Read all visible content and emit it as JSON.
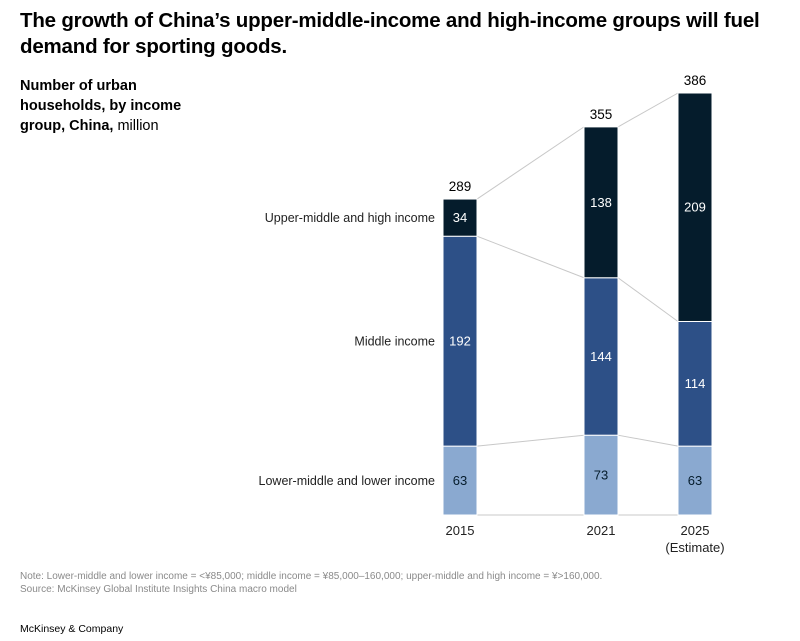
{
  "title": "The growth of China’s upper-middle-income and high-income groups will fuel demand for sporting goods.",
  "subtitle": {
    "bold": "Number of urban households, by income group, China,",
    "unit": "million"
  },
  "note": "Note: Lower-middle and lower income = <¥85,000; middle income = ¥85,000–160,000; upper-middle and high income = ¥>160,000.",
  "source": "Source: McKinsey Global Institute Insights China macro model",
  "brand": "McKinsey & Company",
  "chart_data": {
    "type": "bar",
    "stacked": true,
    "title": "Number of urban households, by income group, China, million",
    "categories": [
      "2015",
      "2021",
      "2025"
    ],
    "category_sublabels": [
      "",
      "",
      "(Estimate)"
    ],
    "series": [
      {
        "name": "Lower-middle and lower income",
        "color": "#8aa9d0",
        "label_color": "#051c2c",
        "values": [
          63,
          73,
          63
        ]
      },
      {
        "name": "Middle income",
        "color": "#2d5087",
        "label_color": "#ffffff",
        "values": [
          192,
          144,
          114
        ]
      },
      {
        "name": "Upper-middle and high income",
        "color": "#051c2c",
        "label_color": "#ffffff",
        "values": [
          34,
          138,
          209
        ]
      }
    ],
    "totals": [
      289,
      355,
      386
    ],
    "xlabel": "",
    "ylabel": "",
    "ylim": [
      0,
      386
    ],
    "grid": false,
    "legend": "left-inline",
    "connector_lines": true
  }
}
